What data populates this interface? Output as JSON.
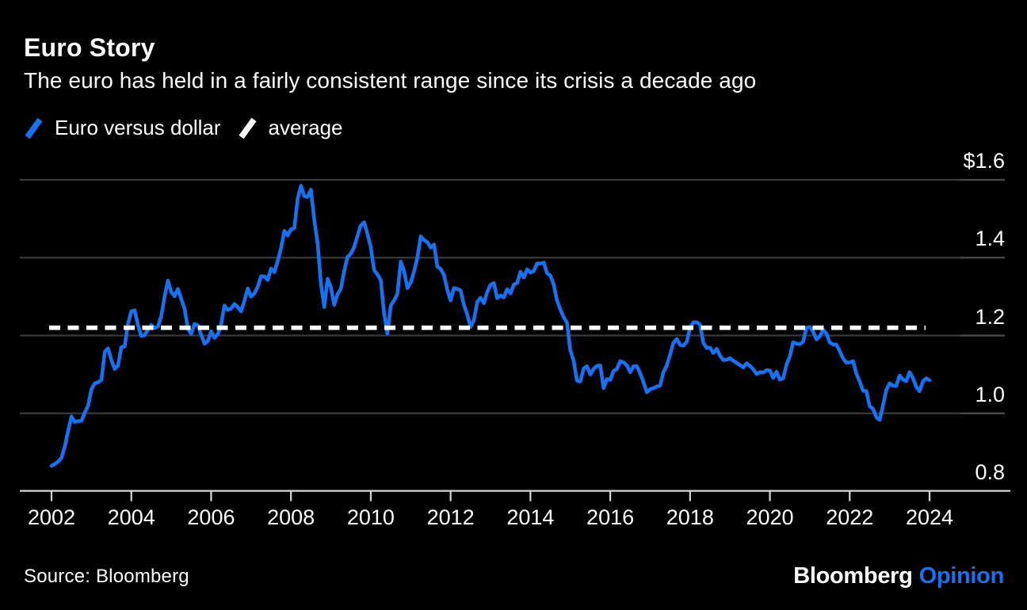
{
  "header": {
    "title": "Euro Story",
    "subtitle": "The euro has held in a fairly consistent range since its crisis a decade ago"
  },
  "legend": {
    "items": [
      {
        "label": "Euro versus dollar",
        "color": "#1671f3"
      },
      {
        "label": "average",
        "color": "#ffffff"
      }
    ]
  },
  "footer": {
    "source": "Source: Bloomberg",
    "logo_primary": "Bloomberg",
    "logo_secondary": "Opinion"
  },
  "colors": {
    "background": "#000000",
    "accent_blue": "#1671f3",
    "gridline": "#3a3a3a",
    "gridline_right_segment": "#4a4a4a",
    "axis_line": "#d6d6d6",
    "text": "#ffffff"
  },
  "chart_data": {
    "type": "line",
    "title": "Euro Story",
    "xlabel": "",
    "ylabel": "",
    "grid": true,
    "legend_position": "top-left",
    "x_range": [
      2002.0,
      2024.08
    ],
    "y_range": [
      0.8,
      1.6
    ],
    "x_ticks": [
      2002,
      2004,
      2006,
      2008,
      2010,
      2012,
      2014,
      2016,
      2018,
      2020,
      2022,
      2024
    ],
    "y_ticks": [
      {
        "label": "$1.6",
        "value": 1.6
      },
      {
        "label": "1.4",
        "value": 1.4
      },
      {
        "label": "1.2",
        "value": 1.2
      },
      {
        "label": "1.0",
        "value": 1.0
      },
      {
        "label": "0.8",
        "value": 0.8
      }
    ],
    "series": [
      {
        "name": "Euro versus dollar",
        "type": "line",
        "color": "#1671f3",
        "start_year": 2002,
        "points_per_year": 12,
        "values": [
          0.865,
          0.87,
          0.876,
          0.886,
          0.915,
          0.955,
          0.992,
          0.978,
          0.98,
          0.981,
          1.002,
          1.02,
          1.062,
          1.077,
          1.08,
          1.086,
          1.158,
          1.167,
          1.137,
          1.114,
          1.123,
          1.17,
          1.172,
          1.23,
          1.262,
          1.265,
          1.227,
          1.199,
          1.201,
          1.215,
          1.227,
          1.219,
          1.223,
          1.25,
          1.3,
          1.341,
          1.312,
          1.301,
          1.32,
          1.294,
          1.269,
          1.217,
          1.204,
          1.23,
          1.226,
          1.202,
          1.179,
          1.186,
          1.211,
          1.194,
          1.203,
          1.228,
          1.277,
          1.266,
          1.269,
          1.281,
          1.273,
          1.262,
          1.289,
          1.321,
          1.3,
          1.308,
          1.325,
          1.352,
          1.352,
          1.343,
          1.372,
          1.363,
          1.391,
          1.424,
          1.469,
          1.457,
          1.473,
          1.476,
          1.552,
          1.585,
          1.558,
          1.556,
          1.575,
          1.496,
          1.437,
          1.333,
          1.273,
          1.346,
          1.324,
          1.279,
          1.306,
          1.32,
          1.365,
          1.402,
          1.41,
          1.427,
          1.456,
          1.483,
          1.491,
          1.461,
          1.427,
          1.368,
          1.357,
          1.342,
          1.257,
          1.205,
          1.277,
          1.29,
          1.307,
          1.39,
          1.366,
          1.322,
          1.336,
          1.365,
          1.4,
          1.455,
          1.445,
          1.44,
          1.426,
          1.434,
          1.377,
          1.371,
          1.356,
          1.318,
          1.29,
          1.322,
          1.32,
          1.316,
          1.279,
          1.254,
          1.222,
          1.24,
          1.286,
          1.297,
          1.283,
          1.312,
          1.33,
          1.335,
          1.296,
          1.303,
          1.298,
          1.319,
          1.308,
          1.331,
          1.335,
          1.364,
          1.349,
          1.37,
          1.362,
          1.366,
          1.385,
          1.385,
          1.387,
          1.36,
          1.354,
          1.331,
          1.29,
          1.267,
          1.247,
          1.233,
          1.162,
          1.135,
          1.084,
          1.082,
          1.115,
          1.121,
          1.1,
          1.114,
          1.122,
          1.123,
          1.065,
          1.088,
          1.086,
          1.109,
          1.114,
          1.134,
          1.131,
          1.123,
          1.106,
          1.121,
          1.121,
          1.102,
          1.08,
          1.054,
          1.062,
          1.065,
          1.069,
          1.072,
          1.106,
          1.123,
          1.151,
          1.181,
          1.191,
          1.176,
          1.174,
          1.184,
          1.22,
          1.234,
          1.234,
          1.228,
          1.181,
          1.168,
          1.169,
          1.155,
          1.166,
          1.148,
          1.137,
          1.138,
          1.142,
          1.135,
          1.13,
          1.124,
          1.118,
          1.129,
          1.122,
          1.113,
          1.101,
          1.106,
          1.105,
          1.111,
          1.11,
          1.091,
          1.107,
          1.087,
          1.09,
          1.125,
          1.146,
          1.183,
          1.179,
          1.178,
          1.184,
          1.22,
          1.222,
          1.21,
          1.19,
          1.198,
          1.215,
          1.205,
          1.182,
          1.177,
          1.177,
          1.16,
          1.141,
          1.13,
          1.131,
          1.134,
          1.102,
          1.082,
          1.058,
          1.057,
          1.018,
          1.012,
          0.99,
          0.983,
          1.02,
          1.06,
          1.077,
          1.071,
          1.071,
          1.097,
          1.087,
          1.083,
          1.106,
          1.091,
          1.068,
          1.057,
          1.082,
          1.09,
          1.085
        ]
      },
      {
        "name": "average",
        "type": "horizontal-dotted-line",
        "color": "#ffffff",
        "value": 1.22
      }
    ]
  }
}
